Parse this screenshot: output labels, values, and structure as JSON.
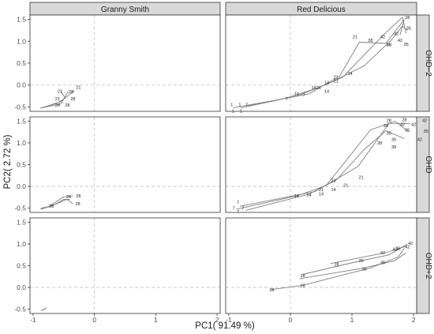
{
  "chart_data": {
    "type": "line",
    "xlabel": "PC1( 91.49 %)",
    "ylabel": "PC2( 2.72 %)",
    "xlim": [
      -1.05,
      2.05
    ],
    "ylim": [
      -0.6,
      1.6
    ],
    "x_ticks": [
      -1,
      0,
      1,
      2
    ],
    "y_ticks": [
      -0.5,
      0.0,
      0.5,
      1.0,
      1.5
    ],
    "x_tick_labels": [
      "-1",
      "0",
      "1",
      "2"
    ],
    "y_tick_labels": [
      "-0.5",
      "0.0",
      "0.5",
      "1.0",
      "1.5"
    ],
    "columns": [
      "Granny Smith",
      "Red Delicious"
    ],
    "rows": [
      "OHD−2",
      "OHD",
      "OHD+2"
    ],
    "grid": "dashed-zero-lines",
    "colors": {
      "panel_bg": "#ffffff",
      "panel_border": "#333333",
      "strip_bg": "#d9d9d9",
      "line": "#7f7f7f",
      "zero_line": "#c8c8c8",
      "text": "#1a1a1a"
    },
    "panels": [
      {
        "col": "Granny Smith",
        "row": "OHD−2",
        "series": [
          {
            "points": [
              [
                -0.88,
                -0.53
              ],
              [
                -0.62,
                -0.42
              ],
              [
                -0.5,
                -0.32
              ],
              [
                -0.33,
                -0.13
              ]
            ]
          },
          {
            "points": [
              [
                -0.88,
                -0.53
              ],
              [
                -0.55,
                -0.38
              ],
              [
                -0.5,
                -0.32
              ],
              [
                -0.43,
                -0.15
              ]
            ]
          },
          {
            "points": [
              [
                -0.86,
                -0.52
              ],
              [
                -0.55,
                -0.43
              ],
              [
                -0.48,
                -0.28
              ],
              [
                -0.55,
                -0.15
              ]
            ]
          }
        ],
        "labels": [
          {
            "text": "28",
            "x": -0.6,
            "y": -0.46
          },
          {
            "text": "28",
            "x": -0.44,
            "y": -0.46
          },
          {
            "text": "28",
            "x": -0.35,
            "y": -0.31
          },
          {
            "text": "21",
            "x": -0.6,
            "y": -0.31
          },
          {
            "text": "21",
            "x": -0.56,
            "y": -0.14
          },
          {
            "text": "21",
            "x": -0.26,
            "y": -0.05
          },
          {
            "text": "28",
            "x": -0.38,
            "y": -0.15
          }
        ]
      },
      {
        "col": "Red Delicious",
        "row": "OHD−2",
        "series": [
          {
            "points": [
              [
                -0.93,
                -0.52
              ],
              [
                -0.1,
                -0.31
              ],
              [
                0.48,
                -0.05
              ],
              [
                0.85,
                0.18
              ],
              [
                1.55,
                1.2
              ],
              [
                1.82,
                1.55
              ],
              [
                1.88,
                1.18
              ]
            ]
          },
          {
            "points": [
              [
                -0.8,
                -0.52
              ],
              [
                0.1,
                -0.25
              ],
              [
                0.6,
                0.02
              ],
              [
                1.2,
                0.44
              ],
              [
                1.64,
                1.03
              ],
              [
                1.82,
                1.35
              ],
              [
                1.9,
                1.25
              ]
            ]
          },
          {
            "points": [
              [
                -0.7,
                -0.48
              ],
              [
                0.3,
                -0.2
              ],
              [
                0.8,
                0.2
              ],
              [
                1.12,
                0.98
              ],
              [
                1.55,
                0.95
              ],
              [
                1.85,
                1.5
              ],
              [
                1.78,
                1.15
              ]
            ]
          }
        ],
        "labels": [
          {
            "text": "1",
            "x": -0.95,
            "y": -0.45
          },
          {
            "text": "1",
            "x": -0.82,
            "y": -0.45
          },
          {
            "text": "1",
            "x": -0.93,
            "y": -0.59
          },
          {
            "text": "1",
            "x": -0.8,
            "y": -0.59
          },
          {
            "text": "7",
            "x": -0.71,
            "y": -0.45
          },
          {
            "text": "7",
            "x": -0.06,
            "y": -0.31
          },
          {
            "text": "7",
            "x": 0.22,
            "y": -0.23
          },
          {
            "text": "14",
            "x": 0.1,
            "y": -0.19
          },
          {
            "text": "14",
            "x": 0.38,
            "y": -0.06
          },
          {
            "text": "14",
            "x": 0.59,
            "y": 0.06
          },
          {
            "text": "14",
            "x": 0.59,
            "y": -0.14
          },
          {
            "text": "21",
            "x": 0.46,
            "y": -0.06
          },
          {
            "text": "21",
            "x": 0.74,
            "y": 0.09
          },
          {
            "text": "21",
            "x": 0.74,
            "y": 0.18
          },
          {
            "text": "14",
            "x": 0.97,
            "y": 0.27
          },
          {
            "text": "21",
            "x": 1.05,
            "y": 1.1
          },
          {
            "text": "28",
            "x": 1.3,
            "y": 1.02
          },
          {
            "text": "28",
            "x": 1.6,
            "y": 0.92
          },
          {
            "text": "28",
            "x": 1.9,
            "y": 1.55
          },
          {
            "text": "42",
            "x": 1.5,
            "y": 1.1
          },
          {
            "text": "42",
            "x": 1.72,
            "y": 1.18
          },
          {
            "text": "42",
            "x": 1.78,
            "y": 1.02
          },
          {
            "text": "35",
            "x": 1.6,
            "y": 0.92
          },
          {
            "text": "35",
            "x": 1.92,
            "y": 1.3
          },
          {
            "text": "35",
            "x": 1.88,
            "y": 0.93
          }
        ]
      },
      {
        "col": "Granny Smith",
        "row": "OHD",
        "series": [
          {
            "points": [
              [
                -0.88,
                -0.52
              ],
              [
                -0.75,
                -0.47
              ],
              [
                -0.5,
                -0.24
              ],
              [
                -0.35,
                -0.22
              ]
            ]
          },
          {
            "points": [
              [
                -0.86,
                -0.5
              ],
              [
                -0.7,
                -0.45
              ],
              [
                -0.45,
                -0.3
              ],
              [
                -0.35,
                -0.4
              ]
            ]
          },
          {
            "points": [
              [
                -0.87,
                -0.53
              ],
              [
                -0.65,
                -0.42
              ],
              [
                -0.5,
                -0.3
              ],
              [
                -0.4,
                -0.3
              ]
            ]
          }
        ],
        "labels": [
          {
            "text": "28",
            "x": -0.42,
            "y": -0.24
          },
          {
            "text": "28",
            "x": -0.26,
            "y": -0.22
          },
          {
            "text": "28",
            "x": -0.7,
            "y": -0.45
          },
          {
            "text": "28",
            "x": -0.27,
            "y": -0.4
          }
        ]
      },
      {
        "col": "Red Delicious",
        "row": "OHD",
        "series": [
          {
            "points": [
              [
                -0.88,
                -0.53
              ],
              [
                0.1,
                -0.22
              ],
              [
                0.55,
                0.0
              ],
              [
                1.1,
                0.46
              ],
              [
                1.6,
                1.45
              ],
              [
                1.95,
                1.45
              ]
            ]
          },
          {
            "points": [
              [
                -0.72,
                -0.55
              ],
              [
                0.3,
                -0.18
              ],
              [
                0.75,
                0.15
              ],
              [
                1.2,
                0.85
              ],
              [
                1.55,
                1.28
              ],
              [
                1.85,
                1.1
              ]
            ]
          },
          {
            "points": [
              [
                -0.82,
                -0.46
              ],
              [
                0.4,
                -0.12
              ],
              [
                0.6,
                0.05
              ],
              [
                1.3,
                1.3
              ],
              [
                1.7,
                1.5
              ],
              [
                1.92,
                1.25
              ]
            ]
          }
        ],
        "labels": [
          {
            "text": "7",
            "x": -0.92,
            "y": -0.5
          },
          {
            "text": "7",
            "x": -0.85,
            "y": -0.37
          },
          {
            "text": "7",
            "x": -0.85,
            "y": -0.58
          },
          {
            "text": "7",
            "x": -0.77,
            "y": -0.5
          },
          {
            "text": "14",
            "x": 0.1,
            "y": -0.22
          },
          {
            "text": "14",
            "x": 0.3,
            "y": -0.2
          },
          {
            "text": "14",
            "x": 0.5,
            "y": -0.17
          },
          {
            "text": "14",
            "x": 0.7,
            "y": -0.07
          },
          {
            "text": "21",
            "x": 0.5,
            "y": -0.07
          },
          {
            "text": "21",
            "x": 0.7,
            "y": 0.14
          },
          {
            "text": "21",
            "x": 0.9,
            "y": 0.03
          },
          {
            "text": "21",
            "x": 1.15,
            "y": 0.21
          },
          {
            "text": "28",
            "x": 1.45,
            "y": 1.0
          },
          {
            "text": "28",
            "x": 1.55,
            "y": 1.4
          },
          {
            "text": "28",
            "x": 1.6,
            "y": 1.52
          },
          {
            "text": "28",
            "x": 1.85,
            "y": 1.54
          },
          {
            "text": "42",
            "x": 1.82,
            "y": 1.43
          },
          {
            "text": "42",
            "x": 2.0,
            "y": 1.43
          },
          {
            "text": "42",
            "x": 2.18,
            "y": 1.52
          },
          {
            "text": "42",
            "x": 2.1,
            "y": 1.08
          },
          {
            "text": "35",
            "x": 1.6,
            "y": 1.23
          },
          {
            "text": "35",
            "x": 1.9,
            "y": 1.3
          },
          {
            "text": "35",
            "x": 2.2,
            "y": 1.27
          },
          {
            "text": "35",
            "x": 1.68,
            "y": 1.08
          },
          {
            "text": "38",
            "x": 1.68,
            "y": 0.91
          }
        ]
      },
      {
        "col": "Granny Smith",
        "row": "OHD+2",
        "series": [
          {
            "points": [
              [
                -0.87,
                -0.54
              ],
              [
                -0.78,
                -0.47
              ]
            ]
          },
          {
            "points": [
              [
                -0.85,
                -0.53
              ],
              [
                -0.8,
                -0.48
              ]
            ]
          }
        ],
        "labels": []
      },
      {
        "col": "Red Delicious",
        "row": "OHD+2",
        "series": [
          {
            "points": [
              [
                -0.32,
                -0.05
              ],
              [
                0.2,
                0.05
              ],
              [
                1.3,
                0.45
              ],
              [
                1.75,
                0.7
              ],
              [
                1.85,
                0.9
              ]
            ]
          },
          {
            "points": [
              [
                0.15,
                0.2
              ],
              [
                1.2,
                0.45
              ],
              [
                1.7,
                0.62
              ],
              [
                1.88,
                0.8
              ]
            ]
          },
          {
            "points": [
              [
                0.2,
                0.3
              ],
              [
                1.1,
                0.6
              ],
              [
                1.6,
                0.75
              ],
              [
                1.9,
                1.0
              ]
            ]
          },
          {
            "points": [
              [
                0.65,
                0.55
              ],
              [
                1.55,
                0.8
              ],
              [
                1.88,
                0.95
              ]
            ]
          }
        ],
        "labels": [
          {
            "text": "28",
            "x": -0.3,
            "y": -0.05
          },
          {
            "text": "28",
            "x": 0.2,
            "y": 0.05
          },
          {
            "text": "28",
            "x": 0.2,
            "y": 0.27
          },
          {
            "text": "28",
            "x": 0.75,
            "y": 0.54
          },
          {
            "text": "35",
            "x": 1.2,
            "y": 0.43
          },
          {
            "text": "35",
            "x": 1.15,
            "y": 0.62
          },
          {
            "text": "35",
            "x": 1.5,
            "y": 0.57
          },
          {
            "text": "35",
            "x": 1.75,
            "y": 0.9
          },
          {
            "text": "42",
            "x": 1.5,
            "y": 0.8
          },
          {
            "text": "42",
            "x": 1.7,
            "y": 0.88
          },
          {
            "text": "42",
            "x": 1.9,
            "y": 0.94
          },
          {
            "text": "42",
            "x": 1.95,
            "y": 1.02
          }
        ]
      }
    ]
  }
}
